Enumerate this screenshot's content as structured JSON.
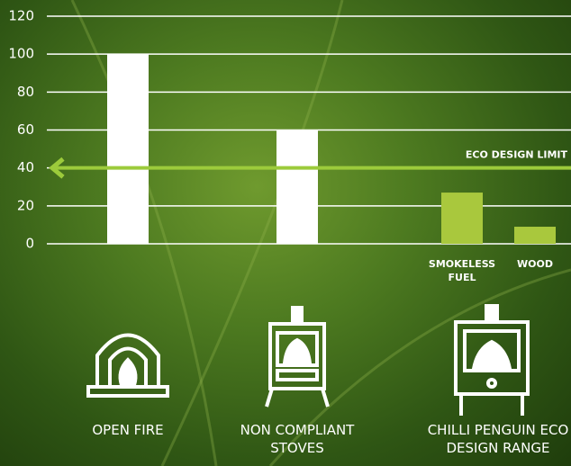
{
  "chart_data": {
    "type": "bar",
    "categories": [
      null,
      null,
      "SMOKELESS FUEL",
      "WOOD"
    ],
    "values": [
      100,
      60,
      27,
      9
    ],
    "colors": [
      "#ffffff",
      "#ffffff",
      "#a9c83d",
      "#a9c83d"
    ],
    "ylim": [
      0,
      120
    ],
    "yticks": [
      0,
      20,
      40,
      60,
      80,
      100,
      120
    ],
    "grid": true,
    "limit": {
      "value": 40,
      "label": "ECO DESIGN LIMIT",
      "color": "#9ccb3b"
    },
    "group_labels": [
      "OPEN FIRE",
      "NON COMPLIANT STOVES",
      "CHILLI PENGUIN ECO DESIGN RANGE"
    ]
  }
}
